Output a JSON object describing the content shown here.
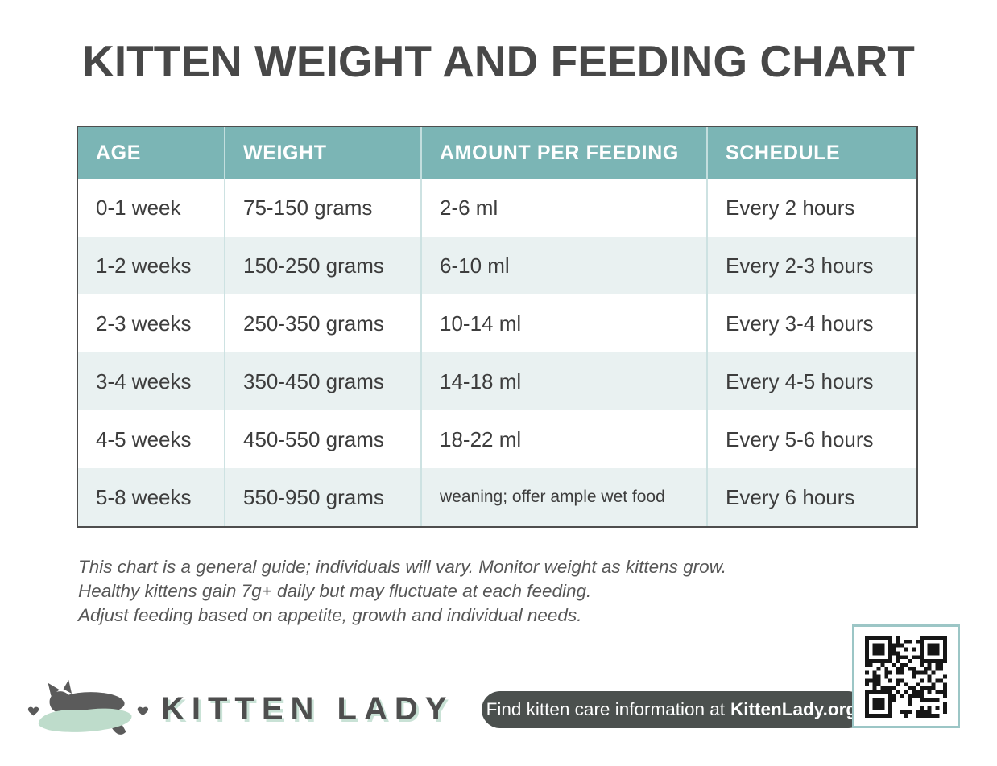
{
  "page": {
    "title": "KITTEN WEIGHT AND FEEDING CHART"
  },
  "table": {
    "columns": [
      "AGE",
      "WEIGHT",
      "AMOUNT PER FEEDING",
      "SCHEDULE"
    ],
    "rows": [
      [
        "0-1 week",
        "75-150 grams",
        "2-6 ml",
        "Every 2 hours"
      ],
      [
        "1-2 weeks",
        "150-250 grams",
        "6-10 ml",
        "Every 2-3 hours"
      ],
      [
        "2-3 weeks",
        "250-350 grams",
        "10-14 ml",
        "Every 3-4 hours"
      ],
      [
        "3-4 weeks",
        "350-450 grams",
        "14-18 ml",
        "Every 4-5 hours"
      ],
      [
        "4-5 weeks",
        "450-550 grams",
        "18-22 ml",
        "Every 5-6 hours"
      ],
      [
        "5-8 weeks",
        "550-950 grams",
        "weaning; offer ample wet food",
        "Every 6 hours"
      ]
    ]
  },
  "notes": {
    "lines": [
      "This chart is a general guide; individuals will vary. Monitor weight as kittens grow.",
      "Healthy kittens gain 7g+ daily but may fluctuate at each feeding.",
      "Adjust feeding based on appetite, growth and individual needs."
    ]
  },
  "footer": {
    "brand": "KITTEN LADY",
    "info_prefix": "Find kitten care information at",
    "info_link": "KittenLady.org",
    "info_suffix": "."
  },
  "colors": {
    "header_teal": "#7bb5b5",
    "row_alt": "#e9f1f1",
    "table_border": "#4e4e4e",
    "title_color": "#484848",
    "body_text": "#3d3d3d",
    "mint": "#bedccb",
    "pill_bg": "#4b504e",
    "qr_border": "#9cc6c6"
  }
}
